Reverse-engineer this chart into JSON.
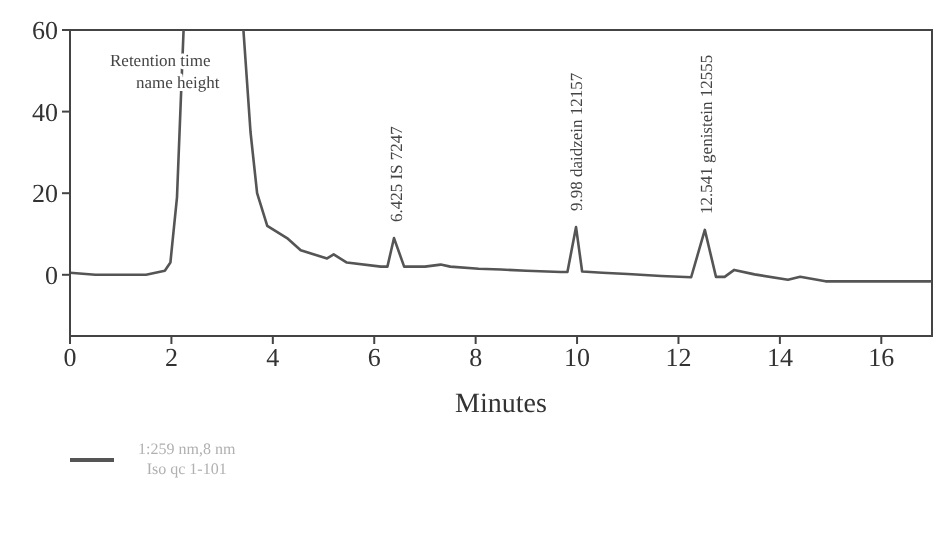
{
  "chart_data": {
    "type": "line",
    "xlabel": "Minutes",
    "xlim": [
      0,
      17
    ],
    "xticks": [
      0,
      2,
      4,
      6,
      8,
      10,
      12,
      14,
      16
    ],
    "ylim": [
      -15,
      60
    ],
    "yticks": [
      0,
      20,
      40,
      60
    ],
    "marker": "none",
    "line_style": "solid",
    "legend": "bottom left",
    "annotations": [
      "Retention time name height",
      {
        "text": "6.425 IS 7247",
        "x": 6.425,
        "y": 9
      },
      {
        "text": "9.98 daidzein 12157",
        "x": 9.98,
        "y": 11.7
      },
      {
        "text": "12.541 genistein 12555",
        "x": 12.541,
        "y": 11
      }
    ],
    "series": [
      {
        "name": "1:259 nm,8 nm\nIso qc 1-101",
        "color": "#555555",
        "x": [
          0,
          0.5,
          1.0,
          1.5,
          1.87,
          1.98,
          2.11,
          2.24,
          2.8,
          3.42,
          3.56,
          3.69,
          3.89,
          4.28,
          4.55,
          5.07,
          5.2,
          5.46,
          6.13,
          6.26,
          6.39,
          6.59,
          7.0,
          7.31,
          7.5,
          8.06,
          8.5,
          9.0,
          9.68,
          9.81,
          9.98,
          10.1,
          10.5,
          11.0,
          11.66,
          12.25,
          12.52,
          12.74,
          12.91,
          13.1,
          13.5,
          14.16,
          14.4,
          14.9,
          16.97
        ],
        "values": [
          0.5,
          0,
          0,
          0,
          1,
          3,
          19,
          60,
          null,
          60,
          35,
          20,
          12,
          9,
          6,
          4,
          5,
          3,
          2,
          2,
          9,
          2,
          2,
          2.5,
          2,
          1.5,
          1.3,
          1,
          0.7,
          0.7,
          11.7,
          0.8,
          0.5,
          0.2,
          -0.3,
          -0.6,
          11,
          -0.5,
          -0.5,
          1.2,
          0.1,
          -1.2,
          -0.5,
          -1.6,
          -1.6
        ]
      }
    ]
  }
}
